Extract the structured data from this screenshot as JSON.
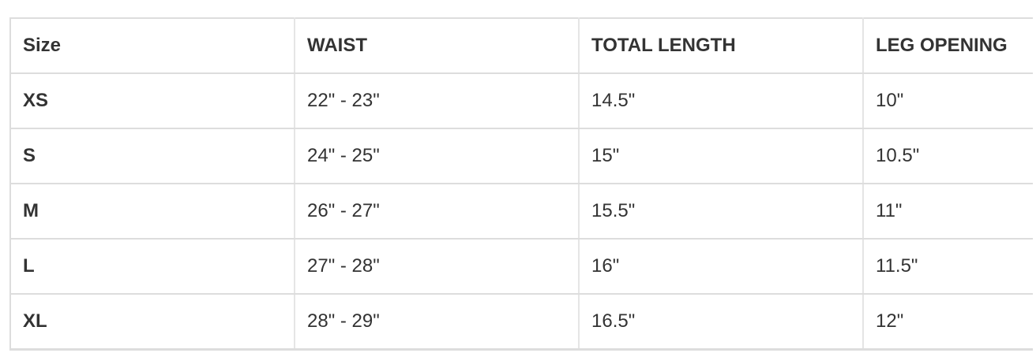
{
  "table": {
    "headers": [
      "Size",
      "WAIST",
      "TOTAL LENGTH",
      "LEG OPENING"
    ],
    "rows": [
      [
        "XS",
        "22\" - 23\"",
        "14.5\"",
        "10\""
      ],
      [
        "S",
        "24\" - 25\"",
        "15\"",
        "10.5\""
      ],
      [
        "M",
        "26\" - 27\"",
        "15.5\"",
        "11\""
      ],
      [
        "L",
        "27\" - 28\"",
        "16\"",
        "11.5\""
      ],
      [
        "XL",
        "28\" - 29\"",
        "16.5\"",
        "12\""
      ]
    ]
  }
}
